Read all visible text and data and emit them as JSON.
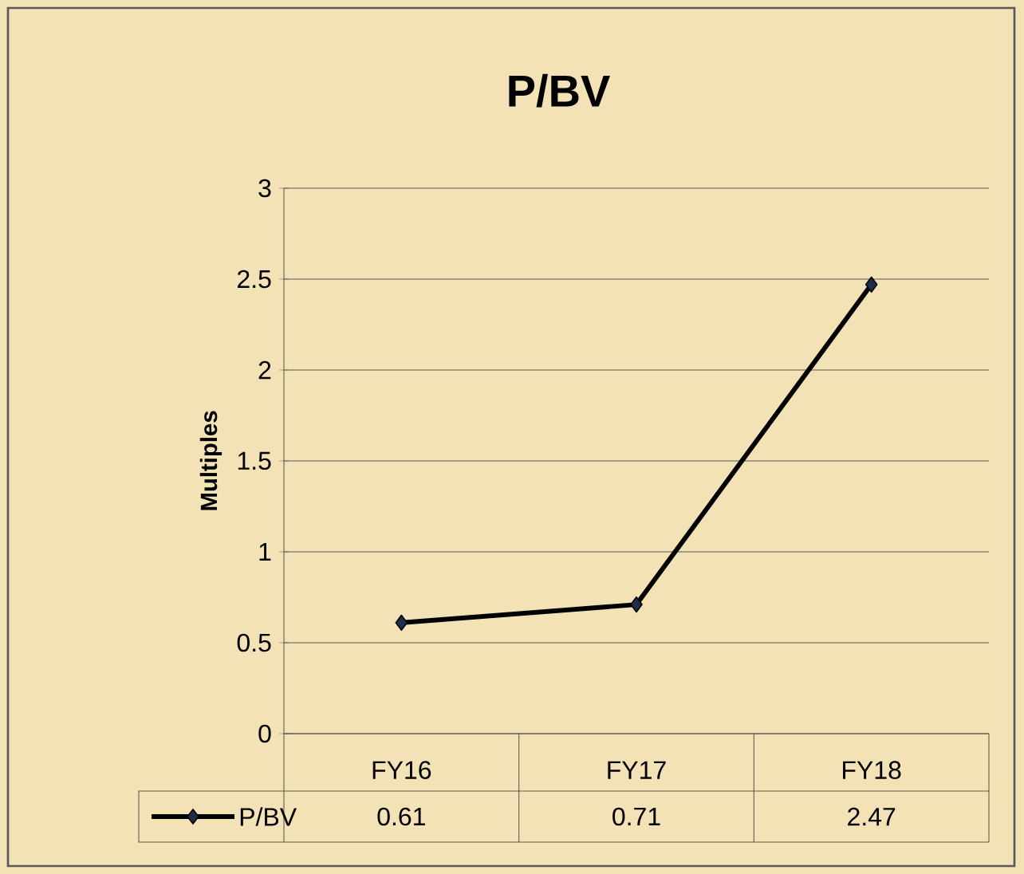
{
  "chart_data": {
    "type": "line",
    "title": "P/BV",
    "ylabel": "Multiples",
    "categories": [
      "FY16",
      "FY17",
      "FY18"
    ],
    "series": [
      {
        "name": "P/BV",
        "color": "#000000",
        "values": [
          0.61,
          0.71,
          2.47
        ]
      }
    ],
    "ylim": [
      0,
      3
    ],
    "yticks": [
      0,
      0.5,
      1,
      1.5,
      2,
      2.5,
      3
    ],
    "grid": "y",
    "legend": "bottom",
    "marker": "diamond",
    "data_labels": true
  }
}
